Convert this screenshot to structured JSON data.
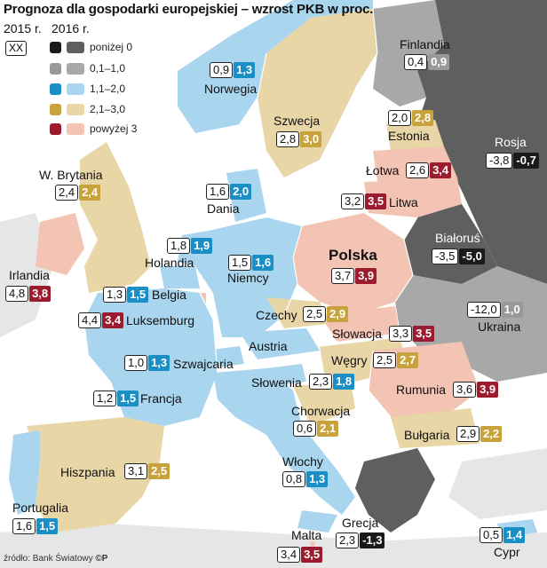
{
  "title": "Prognoza dla gospodarki europejskiej – wzrost PKB w proc.",
  "year_2015": "2015 r.",
  "year_2016": "2016 r.",
  "legend_sample": "XX",
  "legend": [
    {
      "label": "poniżej 0",
      "color": "#5f5f5f"
    },
    {
      "label": "0,1–1,0",
      "color": "#a8a8a8"
    },
    {
      "label": "1,1–2,0",
      "color": "#a9d5ef"
    },
    {
      "label": "2,1–3,0",
      "color": "#e9d6a6"
    },
    {
      "label": "powyżej 3",
      "color": "#f3c4b3"
    }
  ],
  "countries": {
    "finland": {
      "name": "Finlandia",
      "v2015": "0,4",
      "v2016": "0,9"
    },
    "norway": {
      "name": "Norwegia",
      "v2015": "0,9",
      "v2016": "1,3"
    },
    "sweden": {
      "name": "Szwecja",
      "v2015": "2,8",
      "v2016": "3,0"
    },
    "estonia": {
      "name": "Estonia",
      "v2015": "2,0",
      "v2016": "2,8"
    },
    "russia": {
      "name": "Rosja",
      "v2015": "-3,8",
      "v2016": "-0,7"
    },
    "latvia": {
      "name": "Łotwa",
      "v2015": "2,6",
      "v2016": "3,4"
    },
    "uk": {
      "name": "W. Brytania",
      "v2015": "2,4",
      "v2016": "2,4"
    },
    "denmark": {
      "name": "Dania",
      "v2015": "1,6",
      "v2016": "2,0"
    },
    "lithuania": {
      "name": "Litwa",
      "v2015": "3,2",
      "v2016": "3,5"
    },
    "netherlands": {
      "name": "Holandia",
      "v2015": "1,8",
      "v2016": "1,9"
    },
    "belarus": {
      "name": "Białoruś",
      "v2015": "-3,5",
      "v2016": "-5,0"
    },
    "ireland": {
      "name": "Irlandia",
      "v2015": "4,8",
      "v2016": "3,8"
    },
    "germany": {
      "name": "Niemcy",
      "v2015": "1,5",
      "v2016": "1,6"
    },
    "poland": {
      "name": "Polska",
      "v2015": "3,7",
      "v2016": "3,9"
    },
    "belgium": {
      "name": "Belgia",
      "v2015": "1,3",
      "v2016": "1,5"
    },
    "ukraine": {
      "name": "Ukraina",
      "v2015": "-12,0",
      "v2016": "1,0"
    },
    "czech": {
      "name": "Czechy",
      "v2015": "2,5",
      "v2016": "2,9"
    },
    "luxembourg": {
      "name": "Luksemburg",
      "v2015": "4,4",
      "v2016": "3,4"
    },
    "slovakia": {
      "name": "Słowacja",
      "v2015": "3,3",
      "v2016": "3,5"
    },
    "austria": {
      "name": "Austria"
    },
    "switzerland": {
      "name": "Szwajcaria",
      "v2015": "1,0",
      "v2016": "1,3"
    },
    "hungary": {
      "name": "Węgry",
      "v2015": "2,5",
      "v2016": "2,7"
    },
    "slovenia": {
      "name": "Słowenia",
      "v2015": "2,3",
      "v2016": "1,8"
    },
    "romania": {
      "name": "Rumunia",
      "v2015": "3,6",
      "v2016": "3,9"
    },
    "france": {
      "name": "Francja",
      "v2015": "1,2",
      "v2016": "1,5"
    },
    "croatia": {
      "name": "Chorwacja",
      "v2015": "0,6",
      "v2016": "2,1"
    },
    "bulgaria": {
      "name": "Bułgaria",
      "v2015": "2,9",
      "v2016": "2,2"
    },
    "spain": {
      "name": "Hiszpania",
      "v2015": "3,1",
      "v2016": "2,5"
    },
    "italy": {
      "name": "Włochy",
      "v2015": "0,8",
      "v2016": "1,3"
    },
    "portugal": {
      "name": "Portugalia",
      "v2015": "1,6",
      "v2016": "1,5"
    },
    "greece": {
      "name": "Grecja",
      "v2015": "2,3",
      "v2016": "-1,3"
    },
    "malta": {
      "name": "Malta",
      "v2015": "3,4",
      "v2016": "3,5"
    },
    "cyprus": {
      "name": "Cypr",
      "v2015": "0,5",
      "v2016": "1,4"
    }
  },
  "source": "źródło: Bank Światowy",
  "logo": "©P"
}
